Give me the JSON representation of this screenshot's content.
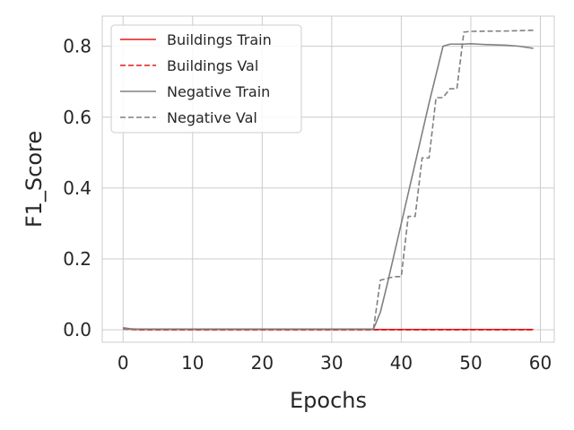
{
  "chart_data": {
    "type": "line",
    "xlabel": "Epochs",
    "ylabel": "F1_Score",
    "xlim": [
      -3,
      62
    ],
    "ylim": [
      -0.035,
      0.885
    ],
    "xticks": [
      0,
      10,
      20,
      30,
      40,
      50,
      60
    ],
    "yticks": [
      0.0,
      0.2,
      0.4,
      0.6,
      0.8
    ],
    "xtick_labels": [
      "0",
      "10",
      "20",
      "30",
      "40",
      "50",
      "60"
    ],
    "ytick_labels": [
      "0.0",
      "0.2",
      "0.4",
      "0.6",
      "0.8"
    ],
    "grid": true,
    "legend_position": "top-left",
    "series": [
      {
        "name": "Buildings Train",
        "color": "#e41a1c",
        "style": "solid",
        "x": [
          0,
          1,
          2,
          5,
          10,
          20,
          30,
          36,
          40,
          45,
          50,
          55,
          59
        ],
        "y": [
          0.004,
          0.002,
          0.001,
          0.001,
          0.001,
          0.001,
          0.001,
          0.001,
          0.001,
          0.001,
          0.001,
          0.001,
          0.001
        ]
      },
      {
        "name": "Buildings Val",
        "color": "#e41a1c",
        "style": "dashed",
        "x": [
          0,
          1,
          2,
          5,
          10,
          20,
          30,
          36,
          40,
          45,
          50,
          55,
          59
        ],
        "y": [
          0.002,
          0.001,
          0.0,
          0.0,
          0.0,
          0.0,
          0.0,
          0.0,
          0.0,
          0.0,
          0.0,
          0.0,
          0.0
        ]
      },
      {
        "name": "Negative Train",
        "color": "#808080",
        "style": "solid",
        "x": [
          0,
          1,
          2,
          5,
          10,
          20,
          30,
          36,
          37,
          38,
          40,
          42,
          44,
          46,
          47,
          48,
          49,
          50,
          51,
          52,
          55,
          57,
          58,
          59
        ],
        "y": [
          0.006,
          0.003,
          0.002,
          0.002,
          0.002,
          0.002,
          0.002,
          0.002,
          0.05,
          0.13,
          0.3,
          0.47,
          0.64,
          0.8,
          0.806,
          0.806,
          0.806,
          0.807,
          0.806,
          0.805,
          0.803,
          0.8,
          0.797,
          0.794
        ]
      },
      {
        "name": "Negative Val",
        "color": "#808080",
        "style": "dashed",
        "x": [
          0,
          1,
          2,
          5,
          10,
          20,
          30,
          36,
          37,
          38,
          39,
          40,
          41,
          42,
          43,
          44,
          45,
          46,
          47,
          48,
          49,
          50,
          55,
          59
        ],
        "y": [
          0.003,
          0.002,
          0.002,
          0.002,
          0.002,
          0.002,
          0.002,
          0.002,
          0.14,
          0.145,
          0.15,
          0.15,
          0.32,
          0.32,
          0.485,
          0.485,
          0.655,
          0.655,
          0.68,
          0.68,
          0.84,
          0.842,
          0.843,
          0.845
        ]
      }
    ]
  }
}
